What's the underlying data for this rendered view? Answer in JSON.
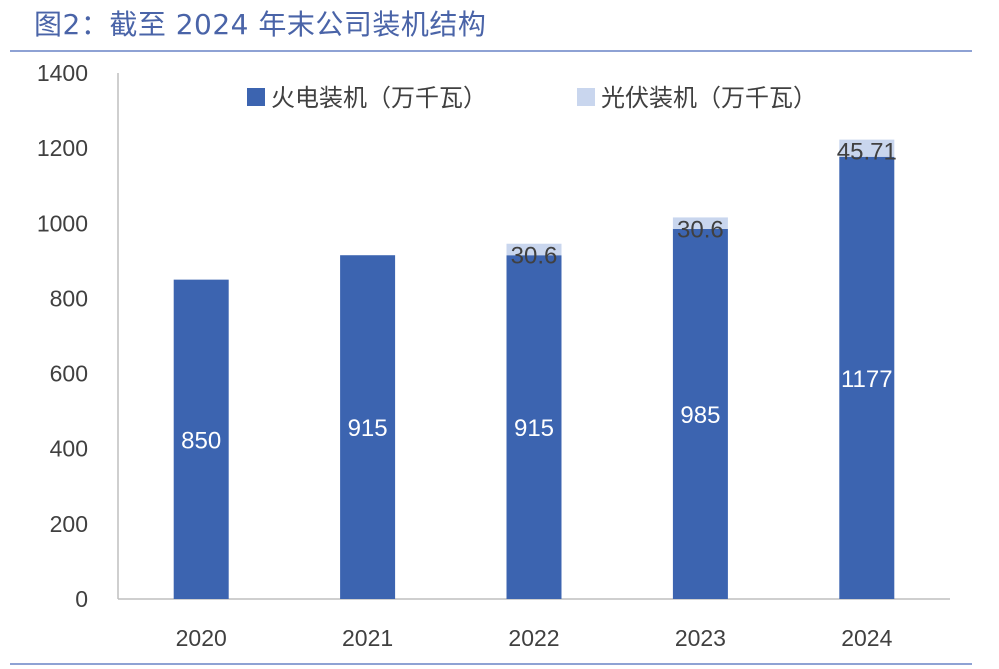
{
  "figure": {
    "title": "图2：截至 2024 年末公司装机结构"
  },
  "colors": {
    "thermal": "#3c64b0",
    "solar": "#c9d6ee",
    "title": "#4a64a8",
    "rule": "#8ea2d4",
    "axis": "#bfbfbf"
  },
  "chart_data": {
    "type": "bar",
    "stacked": true,
    "categories": [
      "2020",
      "2021",
      "2022",
      "2023",
      "2024"
    ],
    "series": [
      {
        "name": "火电装机（万千瓦）",
        "values": [
          850,
          915,
          915,
          985,
          1177
        ],
        "labels": [
          "850",
          "915",
          "915",
          "985",
          "1177"
        ]
      },
      {
        "name": "光伏装机（万千瓦）",
        "values": [
          0,
          0,
          30.6,
          30.6,
          45.71
        ],
        "labels": [
          "",
          "",
          "30.6",
          "30.6",
          "45.71"
        ]
      }
    ],
    "ylim": [
      0,
      1400
    ],
    "yticks": [
      0,
      200,
      400,
      600,
      800,
      1000,
      1200,
      1400
    ],
    "legend_position": "top",
    "grid": false
  }
}
